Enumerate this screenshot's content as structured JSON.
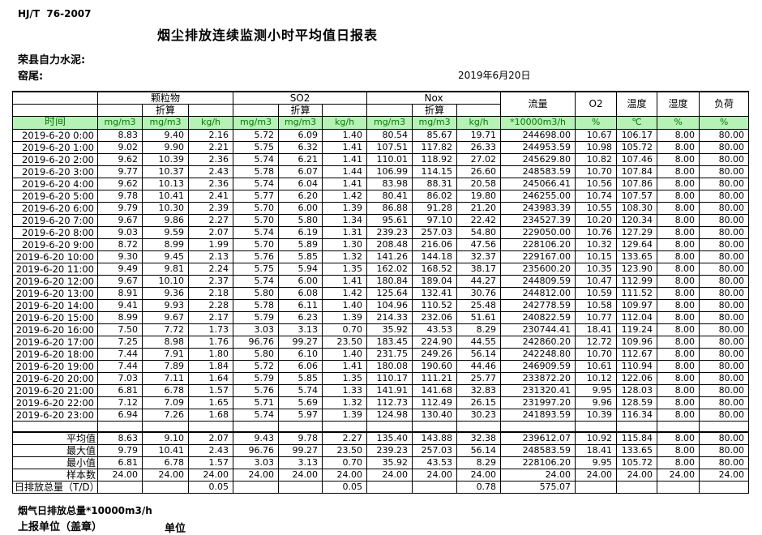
{
  "page": {
    "standard": "HJ/T  76-2007",
    "title": "烟尘排放连续监测小时平均值日报表",
    "company": "荣县自力水泥:",
    "location": "窑尾:",
    "date": "2019年6月20日"
  },
  "table": {
    "time_header": "时间",
    "group_labels": [
      "颗粒物",
      "SO2",
      "Nox"
    ],
    "converted_label": "折算",
    "right_headers": [
      "流量",
      "O2",
      "温度",
      "湿度",
      "负荷"
    ],
    "units": [
      "mg/m3",
      "mg/m3",
      "kg/h",
      "mg/m3",
      "mg/m3",
      "kg/h",
      "mg/m3",
      "mg/m3",
      "kg/h",
      "*10000m3/h",
      "%",
      "℃",
      "%",
      "%"
    ],
    "rows": [
      {
        "time": "2019-6-20  0:00",
        "values": [
          "8.83",
          "9.40",
          "2.16",
          "5.72",
          "6.09",
          "1.40",
          "80.54",
          "85.67",
          "19.71",
          "244698.00",
          "10.67",
          "106.17",
          "8.00",
          "80.00"
        ]
      },
      {
        "time": "2019-6-20  1:00",
        "values": [
          "9.02",
          "9.90",
          "2.21",
          "5.75",
          "6.32",
          "1.41",
          "107.51",
          "117.82",
          "26.33",
          "244953.59",
          "10.98",
          "105.72",
          "8.00",
          "80.00"
        ]
      },
      {
        "time": "2019-6-20  2:00",
        "values": [
          "9.62",
          "10.39",
          "2.36",
          "5.74",
          "6.21",
          "1.41",
          "110.01",
          "118.92",
          "27.02",
          "245629.80",
          "10.82",
          "107.46",
          "8.00",
          "80.00"
        ]
      },
      {
        "time": "2019-6-20  3:00",
        "values": [
          "9.77",
          "10.37",
          "2.43",
          "5.78",
          "6.07",
          "1.44",
          "106.99",
          "114.15",
          "26.60",
          "248583.59",
          "10.70",
          "107.84",
          "8.00",
          "80.00"
        ]
      },
      {
        "time": "2019-6-20  4:00",
        "values": [
          "9.62",
          "10.13",
          "2.36",
          "5.74",
          "6.04",
          "1.41",
          "83.98",
          "88.31",
          "20.58",
          "245066.41",
          "10.56",
          "107.86",
          "8.00",
          "80.00"
        ]
      },
      {
        "time": "2019-6-20  5:00",
        "values": [
          "9.78",
          "10.41",
          "2.41",
          "5.77",
          "6.20",
          "1.42",
          "80.41",
          "86.02",
          "19.80",
          "246255.00",
          "10.74",
          "107.57",
          "8.00",
          "80.00"
        ]
      },
      {
        "time": "2019-6-20  6:00",
        "values": [
          "9.79",
          "10.30",
          "2.39",
          "5.70",
          "6.00",
          "1.39",
          "86.88",
          "91.28",
          "21.20",
          "243983.39",
          "10.55",
          "108.30",
          "8.00",
          "80.00"
        ]
      },
      {
        "time": "2019-6-20  7:00",
        "values": [
          "9.67",
          "9.86",
          "2.27",
          "5.70",
          "5.80",
          "1.34",
          "95.61",
          "97.10",
          "22.42",
          "234527.39",
          "10.20",
          "120.34",
          "8.00",
          "80.00"
        ]
      },
      {
        "time": "2019-6-20  8:00",
        "values": [
          "9.03",
          "9.59",
          "2.07",
          "5.74",
          "6.19",
          "1.31",
          "239.23",
          "257.03",
          "54.80",
          "229050.00",
          "10.76",
          "127.29",
          "8.00",
          "80.00"
        ]
      },
      {
        "time": "2019-6-20  9:00",
        "values": [
          "8.72",
          "8.99",
          "1.99",
          "5.70",
          "5.89",
          "1.30",
          "208.48",
          "216.06",
          "47.56",
          "228106.20",
          "10.32",
          "129.64",
          "8.00",
          "80.00"
        ]
      },
      {
        "time": "2019-6-20 10:00",
        "values": [
          "9.30",
          "9.45",
          "2.13",
          "5.76",
          "5.85",
          "1.32",
          "141.26",
          "144.18",
          "32.37",
          "229167.00",
          "10.15",
          "133.65",
          "8.00",
          "80.00"
        ]
      },
      {
        "time": "2019-6-20 11:00",
        "values": [
          "9.49",
          "9.81",
          "2.24",
          "5.75",
          "5.94",
          "1.35",
          "162.02",
          "168.52",
          "38.17",
          "235600.20",
          "10.35",
          "123.90",
          "8.00",
          "80.00"
        ]
      },
      {
        "time": "2019-6-20 12:00",
        "values": [
          "9.67",
          "10.10",
          "2.37",
          "5.74",
          "6.00",
          "1.41",
          "180.84",
          "189.04",
          "44.27",
          "244809.59",
          "10.47",
          "112.99",
          "8.00",
          "80.00"
        ]
      },
      {
        "time": "2019-6-20 13:00",
        "values": [
          "8.91",
          "9.36",
          "2.18",
          "5.80",
          "6.08",
          "1.42",
          "125.64",
          "132.41",
          "30.76",
          "244812.00",
          "10.59",
          "111.52",
          "8.00",
          "80.00"
        ]
      },
      {
        "time": "2019-6-20 14:00",
        "values": [
          "9.41",
          "9.93",
          "2.28",
          "5.78",
          "6.11",
          "1.40",
          "104.96",
          "110.52",
          "25.48",
          "242778.59",
          "10.58",
          "109.97",
          "8.00",
          "80.00"
        ]
      },
      {
        "time": "2019-6-20 15:00",
        "values": [
          "8.99",
          "9.67",
          "2.17",
          "5.79",
          "6.23",
          "1.39",
          "214.33",
          "232.06",
          "51.61",
          "240822.59",
          "10.77",
          "112.04",
          "8.00",
          "80.00"
        ]
      },
      {
        "time": "2019-6-20 16:00",
        "values": [
          "7.50",
          "7.72",
          "1.73",
          "3.03",
          "3.13",
          "0.70",
          "35.92",
          "43.53",
          "8.29",
          "230744.41",
          "18.41",
          "119.24",
          "8.00",
          "80.00"
        ]
      },
      {
        "time": "2019-6-20 17:00",
        "values": [
          "7.25",
          "8.98",
          "1.76",
          "96.76",
          "99.27",
          "23.50",
          "183.45",
          "224.90",
          "44.55",
          "242860.20",
          "12.72",
          "109.96",
          "8.00",
          "80.00"
        ]
      },
      {
        "time": "2019-6-20 18:00",
        "values": [
          "7.44",
          "7.91",
          "1.80",
          "5.80",
          "6.10",
          "1.40",
          "231.75",
          "249.26",
          "56.14",
          "242248.80",
          "10.70",
          "112.67",
          "8.00",
          "80.00"
        ]
      },
      {
        "time": "2019-6-20 19:00",
        "values": [
          "7.44",
          "7.89",
          "1.84",
          "5.72",
          "6.06",
          "1.41",
          "180.08",
          "190.60",
          "44.46",
          "246909.59",
          "10.61",
          "110.94",
          "8.00",
          "80.00"
        ]
      },
      {
        "time": "2019-6-20 20:00",
        "values": [
          "7.03",
          "7.11",
          "1.64",
          "5.79",
          "5.85",
          "1.35",
          "110.17",
          "111.21",
          "25.77",
          "233872.20",
          "10.12",
          "122.06",
          "8.00",
          "80.00"
        ]
      },
      {
        "time": "2019-6-20 21:00",
        "values": [
          "6.81",
          "6.78",
          "1.57",
          "5.76",
          "5.74",
          "1.33",
          "141.91",
          "141.68",
          "32.83",
          "231320.41",
          "9.95",
          "128.03",
          "8.00",
          "80.00"
        ]
      },
      {
        "time": "2019-6-20 22:00",
        "values": [
          "7.12",
          "7.09",
          "1.65",
          "5.71",
          "5.69",
          "1.32",
          "112.73",
          "112.49",
          "26.15",
          "231997.20",
          "9.96",
          "128.59",
          "8.00",
          "80.00"
        ]
      },
      {
        "time": "2019-6-20 23:00",
        "values": [
          "6.94",
          "7.26",
          "1.68",
          "5.74",
          "5.97",
          "1.39",
          "124.98",
          "130.40",
          "30.23",
          "241893.59",
          "10.39",
          "116.34",
          "8.00",
          "80.00"
        ]
      }
    ],
    "summary": [
      {
        "label": "平均值",
        "values": [
          "8.63",
          "9.10",
          "2.07",
          "9.43",
          "9.78",
          "2.27",
          "135.40",
          "143.88",
          "32.38",
          "239612.07",
          "10.92",
          "115.84",
          "8.00",
          "80.00"
        ]
      },
      {
        "label": "最大值",
        "values": [
          "9.79",
          "10.41",
          "2.43",
          "96.76",
          "99.27",
          "23.50",
          "239.23",
          "257.03",
          "56.14",
          "248583.59",
          "18.41",
          "133.65",
          "8.00",
          "80.00"
        ]
      },
      {
        "label": "最小值",
        "values": [
          "6.81",
          "6.78",
          "1.57",
          "3.03",
          "3.13",
          "0.70",
          "35.92",
          "43.53",
          "8.29",
          "228106.20",
          "9.95",
          "105.72",
          "8.00",
          "80.00"
        ]
      },
      {
        "label": "样本数",
        "values": [
          "24.00",
          "24.00",
          "24.00",
          "24.00",
          "24.00",
          "24.00",
          "24.00",
          "24.00",
          "24.00",
          "24.00",
          "24.00",
          "24.00",
          "24.00",
          "24.00"
        ]
      }
    ],
    "daily_total": {
      "label": "日排放总量（T/D）",
      "values": [
        "",
        "",
        "0.05",
        "",
        "",
        "0.05",
        "",
        "",
        "0.78",
        "575.07",
        "",
        "",
        "",
        ""
      ]
    }
  },
  "footer": {
    "flue_total": "烟气日排放总量*10000m3/h",
    "report_unit": "上报单位（盖章）",
    "unit": "单位"
  }
}
